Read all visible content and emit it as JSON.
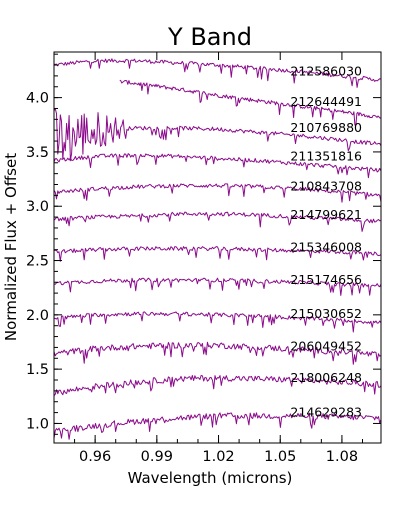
{
  "chart_data": {
    "type": "line",
    "title": "Y Band",
    "xlabel": "Wavelength (microns)",
    "ylabel": "Normalized Flux + Offset",
    "xlim": [
      0.94,
      1.099
    ],
    "ylim": [
      0.82,
      4.42
    ],
    "xticks": [
      0.96,
      0.99,
      1.02,
      1.05,
      1.08
    ],
    "xtick_labels": [
      "0.96",
      "0.99",
      "1.02",
      "1.05",
      "1.08"
    ],
    "yticks": [
      1.0,
      1.5,
      2.0,
      2.5,
      3.0,
      3.5,
      4.0
    ],
    "ytick_labels": [
      "1.0",
      "1.5",
      "2.0",
      "2.5",
      "3.0",
      "3.5",
      "4.0"
    ],
    "grid": false,
    "legend": "none",
    "line_color": "#8b0a8b",
    "series": [
      {
        "name": "212586030",
        "offset": 4.24,
        "x": [
          0.94,
          0.96,
          0.98,
          1.0,
          1.02,
          1.04,
          1.06,
          1.08,
          1.099
        ],
        "y": [
          4.3,
          4.34,
          4.34,
          4.32,
          4.3,
          4.27,
          4.24,
          4.2,
          4.16
        ]
      },
      {
        "name": "212644491",
        "offset": 3.96,
        "x": [
          0.972,
          0.98,
          1.0,
          1.02,
          1.04,
          1.06,
          1.08,
          1.099
        ],
        "y": [
          4.15,
          4.13,
          4.08,
          4.02,
          3.97,
          3.92,
          3.87,
          3.82
        ]
      },
      {
        "name": "210769880",
        "offset": 3.72,
        "x": [
          0.94,
          0.96,
          0.98,
          1.0,
          1.02,
          1.04,
          1.06,
          1.08,
          1.099
        ],
        "y": [
          3.6,
          3.7,
          3.72,
          3.72,
          3.71,
          3.68,
          3.65,
          3.61,
          3.57
        ]
      },
      {
        "name": "211351816",
        "offset": 3.46,
        "x": [
          0.94,
          0.96,
          0.98,
          1.0,
          1.02,
          1.04,
          1.06,
          1.08,
          1.099
        ],
        "y": [
          3.42,
          3.46,
          3.47,
          3.46,
          3.44,
          3.42,
          3.39,
          3.36,
          3.33
        ]
      },
      {
        "name": "210843708",
        "offset": 3.18,
        "x": [
          0.94,
          0.96,
          0.98,
          1.0,
          1.02,
          1.04,
          1.06,
          1.08,
          1.099
        ],
        "y": [
          3.13,
          3.16,
          3.18,
          3.19,
          3.19,
          3.18,
          3.16,
          3.13,
          3.1
        ]
      },
      {
        "name": "214799621",
        "offset": 2.92,
        "x": [
          0.94,
          0.96,
          0.98,
          1.0,
          1.02,
          1.04,
          1.06,
          1.08,
          1.099
        ],
        "y": [
          2.88,
          2.9,
          2.91,
          2.93,
          2.93,
          2.92,
          2.9,
          2.88,
          2.86
        ]
      },
      {
        "name": "215346008",
        "offset": 2.62,
        "x": [
          0.94,
          0.96,
          0.98,
          1.0,
          1.02,
          1.04,
          1.06,
          1.08,
          1.099
        ],
        "y": [
          2.58,
          2.6,
          2.61,
          2.61,
          2.61,
          2.6,
          2.59,
          2.58,
          2.56
        ]
      },
      {
        "name": "215174656",
        "offset": 2.32,
        "x": [
          0.94,
          0.96,
          0.98,
          1.0,
          1.02,
          1.04,
          1.06,
          1.08,
          1.099
        ],
        "y": [
          2.29,
          2.31,
          2.32,
          2.32,
          2.32,
          2.31,
          2.3,
          2.28,
          2.27
        ]
      },
      {
        "name": "215030652",
        "offset": 2.01,
        "x": [
          0.94,
          0.96,
          0.98,
          1.0,
          1.02,
          1.04,
          1.06,
          1.08,
          1.099
        ],
        "y": [
          1.97,
          2.0,
          2.01,
          2.01,
          2.0,
          1.99,
          1.97,
          1.95,
          1.93
        ]
      },
      {
        "name": "206049452",
        "offset": 1.71,
        "x": [
          0.94,
          0.96,
          0.98,
          1.0,
          1.02,
          1.04,
          1.06,
          1.08,
          1.099
        ],
        "y": [
          1.64,
          1.69,
          1.71,
          1.72,
          1.72,
          1.7,
          1.68,
          1.66,
          1.63
        ]
      },
      {
        "name": "218006248",
        "offset": 1.42,
        "x": [
          0.94,
          0.96,
          0.98,
          1.0,
          1.02,
          1.04,
          1.06,
          1.08,
          1.099
        ],
        "y": [
          1.28,
          1.34,
          1.38,
          1.41,
          1.42,
          1.41,
          1.4,
          1.38,
          1.36
        ]
      },
      {
        "name": "214629283",
        "offset": 1.1,
        "x": [
          0.94,
          0.96,
          0.98,
          1.0,
          1.02,
          1.04,
          1.06,
          1.08,
          1.099
        ],
        "y": [
          0.93,
          0.98,
          1.02,
          1.05,
          1.07,
          1.07,
          1.07,
          1.06,
          1.05
        ]
      }
    ]
  }
}
